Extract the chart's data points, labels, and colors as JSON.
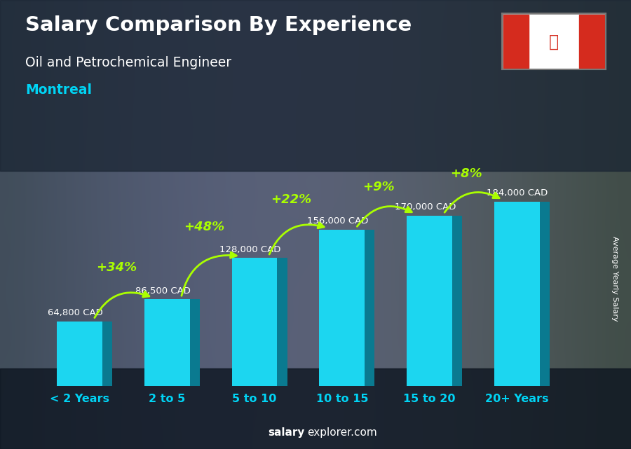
{
  "title": "Salary Comparison By Experience",
  "subtitle": "Oil and Petrochemical Engineer",
  "city": "Montreal",
  "categories": [
    "< 2 Years",
    "2 to 5",
    "5 to 10",
    "10 to 15",
    "15 to 20",
    "20+ Years"
  ],
  "values": [
    64800,
    86500,
    128000,
    156000,
    170000,
    184000
  ],
  "labels": [
    "64,800 CAD",
    "86,500 CAD",
    "128,000 CAD",
    "156,000 CAD",
    "170,000 CAD",
    "184,000 CAD"
  ],
  "pct_changes": [
    "+34%",
    "+48%",
    "+22%",
    "+9%",
    "+8%"
  ],
  "bar_front_color": "#1cd6f0",
  "bar_side_color": "#0a7a90",
  "bar_top_color": "#7aeeff",
  "bar_dark_color": "#086070",
  "bg_color": "#3a4a5a",
  "overlay_color": "#1a2a3a",
  "title_color": "#ffffff",
  "subtitle_color": "#ffffff",
  "city_color": "#00d4f5",
  "label_color": "#ffffff",
  "pct_color": "#aaff00",
  "xlabel_color": "#00d4f5",
  "ylabel_text": "Average Yearly Salary",
  "footer_salary": "salary",
  "footer_rest": "explorer.com",
  "ylim_max": 215000,
  "bar_bottom": 0
}
